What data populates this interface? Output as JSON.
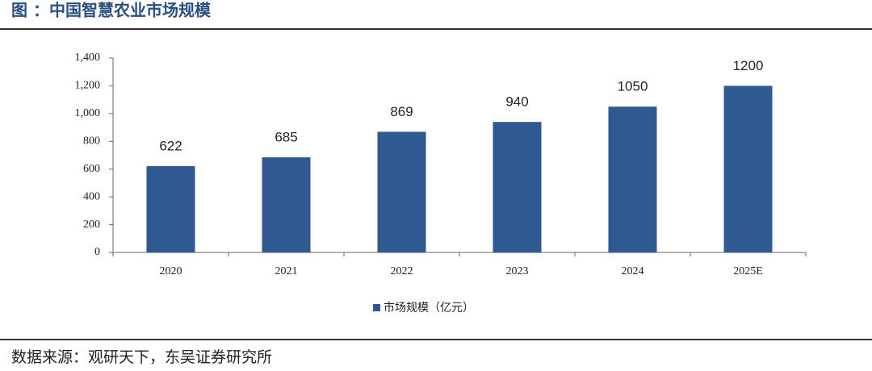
{
  "chart_data": {
    "type": "bar",
    "title": "图  ：中国智慧农业市场规模",
    "source": "数据来源：观研天下，东吴证券研究所",
    "categories": [
      "2020",
      "2021",
      "2022",
      "2023",
      "2024",
      "2025E"
    ],
    "series": [
      {
        "name": "市场规模（亿元）",
        "color": "#2f5a91",
        "values": [
          622,
          685,
          869,
          940,
          1050,
          1200
        ]
      }
    ],
    "ylim": [
      0,
      1400
    ],
    "yticks": [
      0,
      200,
      400,
      600,
      800,
      {
        "value": 1000,
        "label": "1,000"
      },
      {
        "value": 1200,
        "label": "1,200"
      },
      {
        "value": 1400,
        "label": "1,400"
      }
    ],
    "legend": "bottom"
  }
}
